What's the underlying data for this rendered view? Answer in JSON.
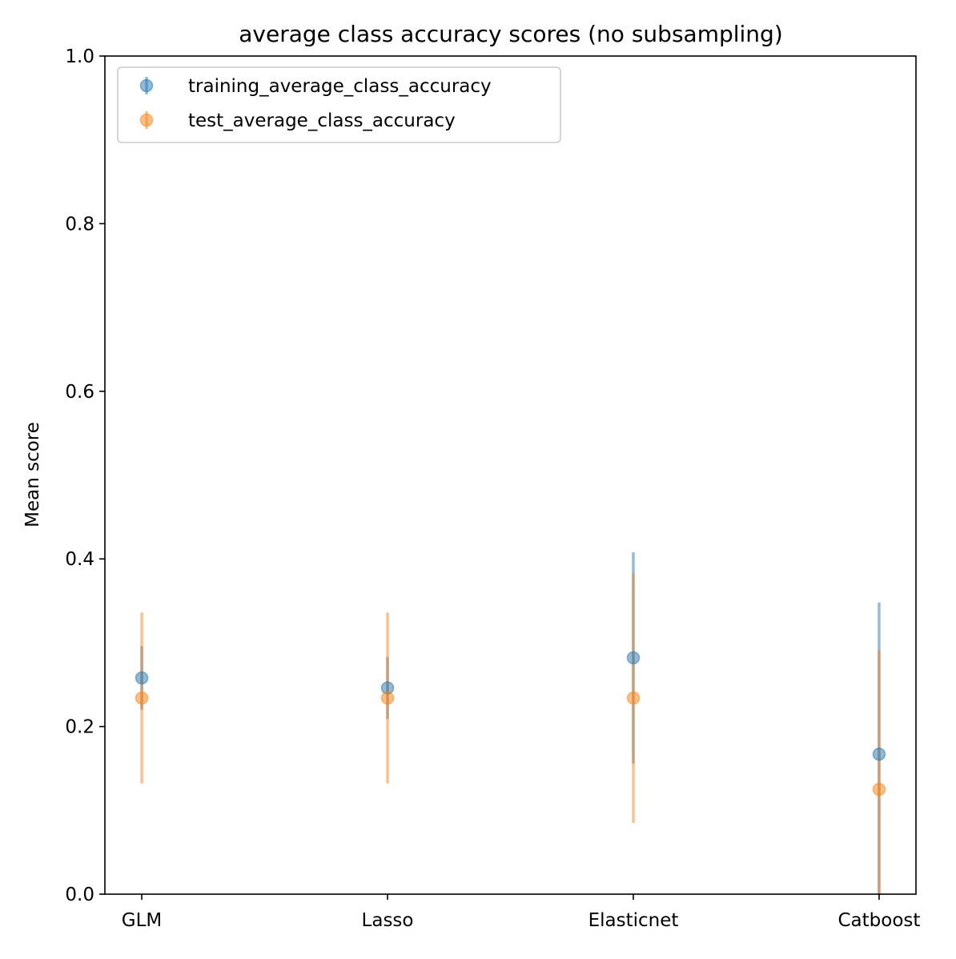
{
  "chart_data": {
    "type": "scatter",
    "title": "average class accuracy scores (no subsampling)",
    "xlabel": "",
    "ylabel": "Mean score",
    "ylim": [
      0.0,
      1.0
    ],
    "yticks": [
      "0.0",
      "0.2",
      "0.4",
      "0.6",
      "0.8",
      "1.0"
    ],
    "categories": [
      "GLM",
      "Lasso",
      "Elasticnet",
      "Catboost"
    ],
    "grid": false,
    "legend_position": "top-left",
    "series": [
      {
        "name": "training_average_class_accuracy",
        "color": "#1f77b4",
        "values": [
          0.258,
          0.246,
          0.282,
          0.167
        ],
        "error": [
          0.038,
          0.037,
          0.126,
          0.181
        ]
      },
      {
        "name": "test_average_class_accuracy",
        "color": "#ff7f0e",
        "values": [
          0.234,
          0.234,
          0.234,
          0.125
        ],
        "error": [
          0.102,
          0.102,
          0.149,
          0.166
        ]
      }
    ]
  }
}
